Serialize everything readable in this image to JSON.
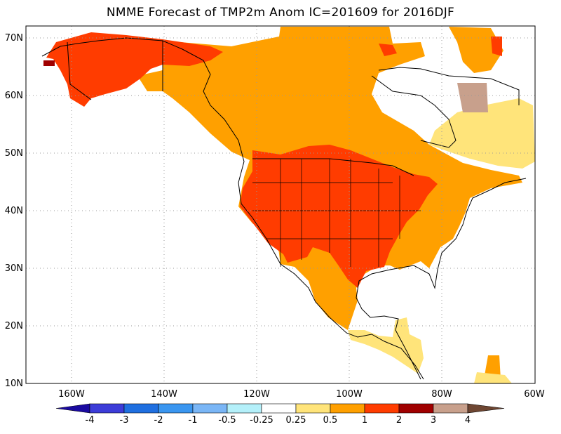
{
  "title": "NMME Forecast of TMP2m Anom  IC=201609 for 2016DJF",
  "lat_labels": [
    "70N",
    "60N",
    "50N",
    "40N",
    "30N",
    "20N",
    "10N"
  ],
  "lon_labels": [
    "160W",
    "140W",
    "120W",
    "100W",
    "80W",
    "60W"
  ],
  "colorbar": {
    "tick_labels": [
      "-4",
      "-3",
      "-2",
      "-1",
      "-0.5",
      "-0.25",
      "0.25",
      "0.5",
      "1",
      "2",
      "3",
      "4"
    ],
    "colors": [
      "#1a0aa0",
      "#3c3cd8",
      "#1f6fe0",
      "#3a96f0",
      "#7ab6f6",
      "#b4f0fa",
      "#ffffff",
      "#ffe47a",
      "#ffa000",
      "#ff3c00",
      "#a00000",
      "#c8a08c",
      "#6e4632"
    ]
  },
  "map_colors": {
    "anom_0_25_0_5": "#ffe47a",
    "anom_0_5_1": "#ffa000",
    "anom_1_2": "#ff3c00",
    "anom_2_3": "#a00000",
    "anom_3_4": "#c8a08c"
  }
}
